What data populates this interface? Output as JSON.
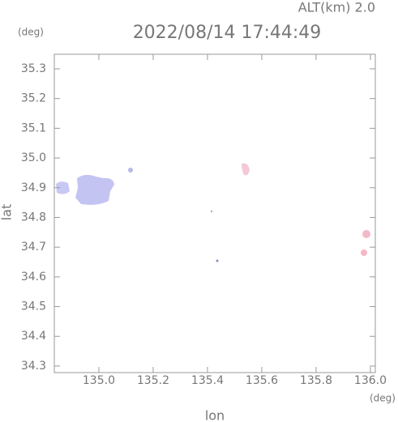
{
  "chart_data": {
    "type": "map",
    "title": "2022/08/14 17:44:49",
    "subtitle": "ALT(km) 2.0",
    "x_label": "lon",
    "y_label": "lat",
    "x_unit": "(deg)",
    "y_unit": "(deg)",
    "xlim": [
      134.836,
      136.018
    ],
    "ylim": [
      34.278,
      35.349
    ],
    "xticks": [
      {
        "value": 135.0,
        "label": "135.0"
      },
      135.2,
      135.4,
      135.6,
      135.8,
      {
        "value": 136.0,
        "label": "136.0"
      }
    ],
    "yticks": [
      34.3,
      34.4,
      34.5,
      34.6,
      34.7,
      34.8,
      34.9,
      {
        "value": 35.0,
        "label": "35.0"
      },
      35.1,
      35.2,
      35.3
    ]
  }
}
